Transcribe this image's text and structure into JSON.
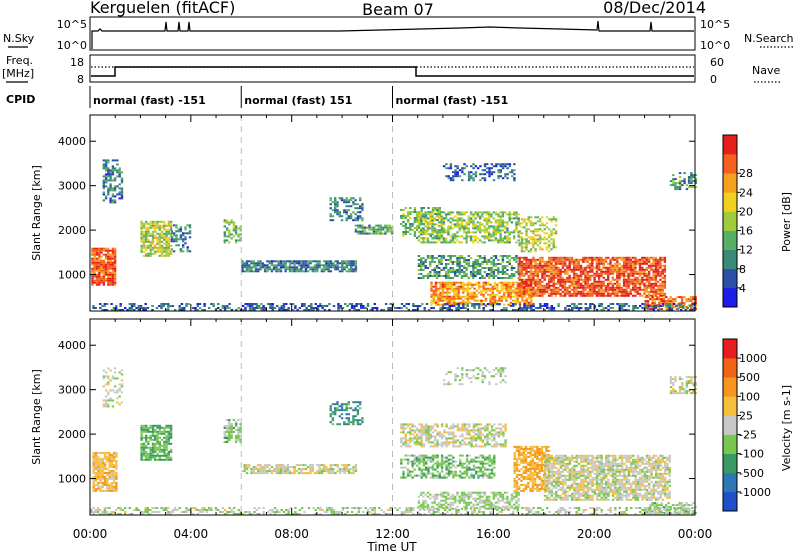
{
  "header": {
    "station": "Kerguelen (fitACF)",
    "beam": "Beam 07",
    "date": "08/Dec/2014"
  },
  "status_panels": {
    "nsky_label": "N.Sky",
    "nsearch_label": "N.Search",
    "noise_ticks_left": [
      "10^5",
      "10^0"
    ],
    "noise_ticks_right": [
      "10^5",
      "10^0"
    ],
    "freq_label_1": "Freq.",
    "freq_label_2": "[MHz]",
    "freq_ticks": [
      "18",
      "8"
    ],
    "nave_label": "Nave",
    "nave_ticks": [
      "60",
      "0"
    ],
    "cpid_label": "CPID",
    "cpid_segments": [
      {
        "start": 0.0,
        "end": 6.0,
        "label": "normal (fast) -151"
      },
      {
        "start": 6.0,
        "end": 12.0,
        "label": "normal (fast) 151"
      },
      {
        "start": 12.0,
        "end": 24.0,
        "label": "normal (fast) -151"
      }
    ]
  },
  "chart_data": [
    {
      "type": "heatmap",
      "title": "Power",
      "ylabel": "Slant Range [km]",
      "ylim": [
        180,
        4590
      ],
      "xlim": [
        0,
        24
      ],
      "yticks": [
        "1000",
        "2000",
        "3000",
        "4000"
      ],
      "colorbar_label": "Power [dB]",
      "colorbar_ticks": [
        "4",
        "8",
        "12",
        "16",
        "20",
        "24",
        "28"
      ],
      "colorbar_range": [
        0,
        30
      ],
      "colorbar_colors": [
        "#1e1ee6",
        "#2d4fa8",
        "#3a8a78",
        "#58b064",
        "#a0cc3c",
        "#f0d21e",
        "#f5a01e",
        "#f5601e",
        "#e61e1e"
      ],
      "blobs": [
        {
          "t0": 0.05,
          "t1": 1.0,
          "r0": 750,
          "r1": 1600,
          "v": 26,
          "d": 0.85
        },
        {
          "t0": 0.5,
          "t1": 1.3,
          "r0": 2600,
          "r1": 3550,
          "v": 7,
          "d": 0.5
        },
        {
          "t0": 2.0,
          "t1": 3.2,
          "r0": 1400,
          "r1": 2200,
          "v": 16,
          "d": 0.75
        },
        {
          "t0": 3.2,
          "t1": 4.0,
          "r0": 1500,
          "r1": 2100,
          "v": 8,
          "d": 0.4
        },
        {
          "t0": 5.3,
          "t1": 6.0,
          "r0": 1700,
          "r1": 2200,
          "v": 12,
          "d": 0.6
        },
        {
          "t0": 6.0,
          "t1": 10.5,
          "r0": 1050,
          "r1": 1300,
          "v": 8,
          "d": 0.8
        },
        {
          "t0": 9.5,
          "t1": 10.8,
          "r0": 2200,
          "r1": 2700,
          "v": 8,
          "d": 0.5
        },
        {
          "t0": 10.5,
          "t1": 12.0,
          "r0": 1900,
          "r1": 2100,
          "v": 10,
          "d": 0.8
        },
        {
          "t0": 12.3,
          "t1": 14.0,
          "r0": 1800,
          "r1": 2500,
          "v": 12,
          "d": 0.5
        },
        {
          "t0": 13.0,
          "t1": 17.0,
          "r0": 1700,
          "r1": 2400,
          "v": 14,
          "d": 0.6
        },
        {
          "t0": 14.0,
          "t1": 16.8,
          "r0": 3100,
          "r1": 3500,
          "v": 6,
          "d": 0.35
        },
        {
          "t0": 13.0,
          "t1": 17.0,
          "r0": 900,
          "r1": 1400,
          "v": 10,
          "d": 0.6
        },
        {
          "t0": 13.5,
          "t1": 17.5,
          "r0": 300,
          "r1": 800,
          "v": 22,
          "d": 0.75
        },
        {
          "t0": 17.0,
          "t1": 22.8,
          "r0": 500,
          "r1": 1400,
          "v": 26,
          "d": 0.8
        },
        {
          "t0": 17.0,
          "t1": 18.5,
          "r0": 1500,
          "r1": 2300,
          "v": 16,
          "d": 0.5
        },
        {
          "t0": 22.0,
          "t1": 24.0,
          "r0": 200,
          "r1": 500,
          "v": 24,
          "d": 0.7
        },
        {
          "t0": 23.0,
          "t1": 24.0,
          "r0": 2900,
          "r1": 3300,
          "v": 10,
          "d": 0.5
        },
        {
          "t0": 0.0,
          "t1": 24.0,
          "r0": 180,
          "r1": 350,
          "v": 6,
          "d": 0.45
        }
      ]
    },
    {
      "type": "heatmap",
      "title": "Velocity",
      "ylabel": "Slant Range [km]",
      "xlabel": "Time UT",
      "ylim": [
        180,
        4590
      ],
      "xlim": [
        0,
        24
      ],
      "yticks": [
        "1000",
        "2000",
        "3000",
        "4000"
      ],
      "xticks": [
        "00:00",
        "04:00",
        "08:00",
        "12:00",
        "16:00",
        "20:00",
        "00:00"
      ],
      "colorbar_label": "Velocity [m s-1]",
      "colorbar_ticks": [
        "1000",
        "500",
        "100",
        "25",
        "-25",
        "-100",
        "-500",
        "-1000"
      ],
      "colorbar_range": [
        -1200,
        1200
      ],
      "colorbar_colors": [
        "#1e50c8",
        "#2d78b4",
        "#3a9a64",
        "#78c850",
        "#c8c8c8",
        "#f5be3c",
        "#f5961e",
        "#f06414",
        "#e61e1e"
      ],
      "blobs": [
        {
          "t0": 0.1,
          "t1": 1.0,
          "r0": 700,
          "r1": 1600,
          "v": 300,
          "d": 0.8
        },
        {
          "t0": 0.5,
          "t1": 1.3,
          "r0": 2600,
          "r1": 3500,
          "v": 0,
          "d": 0.3
        },
        {
          "t0": 2.0,
          "t1": 3.2,
          "r0": 1400,
          "r1": 2200,
          "v": -400,
          "d": 0.75
        },
        {
          "t0": 5.3,
          "t1": 6.0,
          "r0": 1800,
          "r1": 2300,
          "v": -200,
          "d": 0.6
        },
        {
          "t0": 6.0,
          "t1": 10.5,
          "r0": 1100,
          "r1": 1300,
          "v": 0,
          "d": 0.7
        },
        {
          "t0": 9.5,
          "t1": 10.8,
          "r0": 2200,
          "r1": 2700,
          "v": -600,
          "d": 0.5
        },
        {
          "t0": 12.3,
          "t1": 16.5,
          "r0": 1700,
          "r1": 2200,
          "v": 0,
          "d": 0.6
        },
        {
          "t0": 12.3,
          "t1": 16.0,
          "r0": 1000,
          "r1": 1500,
          "v": -300,
          "d": 0.55
        },
        {
          "t0": 13.0,
          "t1": 17.0,
          "r0": 300,
          "r1": 700,
          "v": -150,
          "d": 0.6
        },
        {
          "t0": 16.8,
          "t1": 18.2,
          "r0": 700,
          "r1": 1700,
          "v": 400,
          "d": 0.7
        },
        {
          "t0": 18.0,
          "t1": 23.0,
          "r0": 500,
          "r1": 1500,
          "v": 0,
          "d": 0.75
        },
        {
          "t0": 22.0,
          "t1": 24.0,
          "r0": 200,
          "r1": 450,
          "v": -200,
          "d": 0.6
        },
        {
          "t0": 14.0,
          "t1": 16.5,
          "r0": 3100,
          "r1": 3500,
          "v": -150,
          "d": 0.3
        },
        {
          "t0": 23.0,
          "t1": 24.0,
          "r0": 2900,
          "r1": 3300,
          "v": 0,
          "d": 0.5
        },
        {
          "t0": 0.0,
          "t1": 24.0,
          "r0": 180,
          "r1": 350,
          "v": -80,
          "d": 0.45
        }
      ]
    }
  ]
}
